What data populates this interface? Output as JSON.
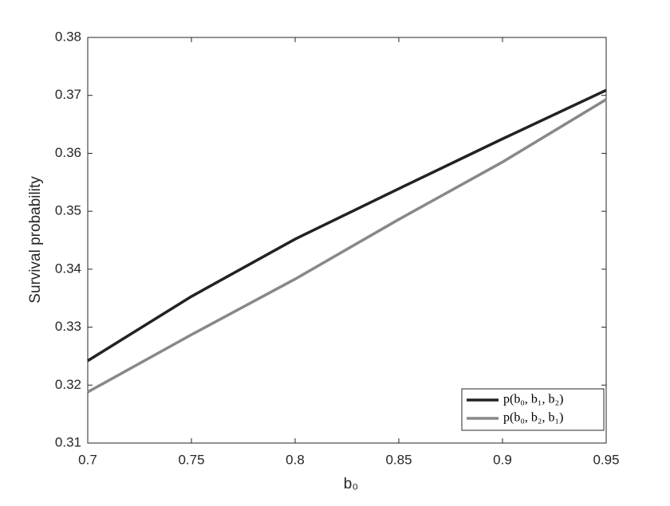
{
  "chart_data": {
    "type": "line",
    "x_label": "b₀",
    "y_label": "Survival probability",
    "x": [
      0.7,
      0.75,
      0.8,
      0.85,
      0.9,
      0.95
    ],
    "series": [
      {
        "name": "p(b₀, b₁, b₂)",
        "color": "#222222",
        "values": [
          0.3242,
          0.3353,
          0.3452,
          0.3539,
          0.3625,
          0.3709
        ]
      },
      {
        "name": "p(b₀, b₂, b₁)",
        "color": "#888888",
        "values": [
          0.3188,
          0.3287,
          0.3383,
          0.3486,
          0.3585,
          0.3693
        ]
      }
    ],
    "xlim": [
      0.7,
      0.95
    ],
    "xticks": [
      0.7,
      0.75,
      0.8,
      0.85,
      0.9,
      0.95
    ],
    "ylim": [
      0.31,
      0.38
    ],
    "yticks": [
      0.31,
      0.32,
      0.33,
      0.34,
      0.35,
      0.36,
      0.37,
      0.38
    ],
    "grid": false,
    "legend": "lower right"
  }
}
